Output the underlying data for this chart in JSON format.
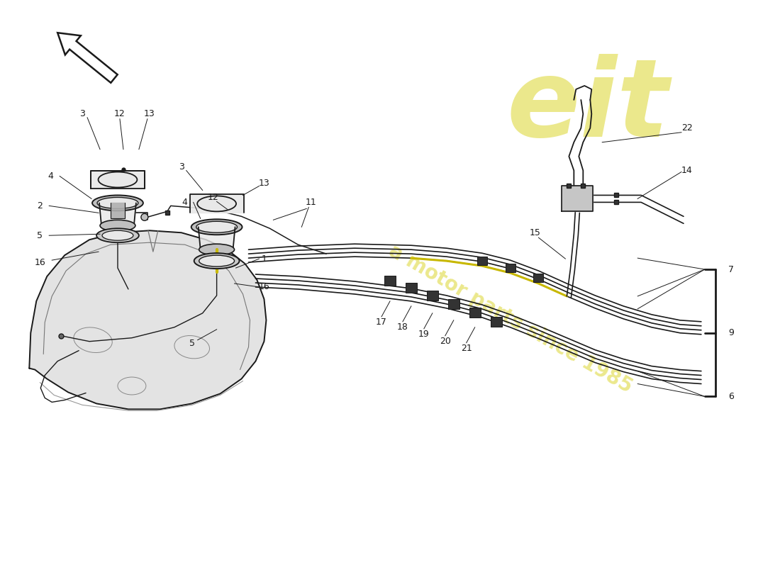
{
  "bg_color": "#ffffff",
  "lc": "#1a1a1a",
  "gray_fill": "#d8d8d8",
  "light_gray": "#e8e8e8",
  "mid_gray": "#c0c0c0",
  "dark_gray": "#888888",
  "yellow": "#c8b800",
  "watermark_color": "#d4cc00",
  "watermark_alpha": 0.45,
  "pipe_lw": 1.3,
  "tank_lw": 1.4,
  "label_fs": 9
}
